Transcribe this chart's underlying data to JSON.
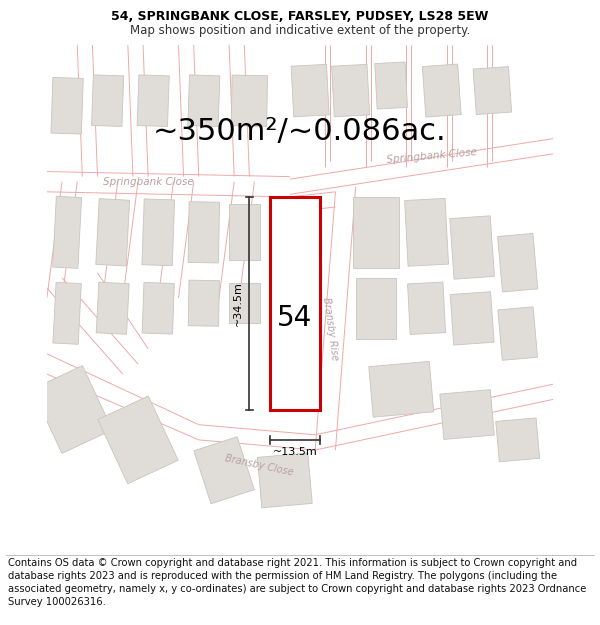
{
  "title_line1": "54, SPRINGBANK CLOSE, FARSLEY, PUDSEY, LS28 5EW",
  "title_line2": "Map shows position and indicative extent of the property.",
  "area_text": "~350m²/~0.086ac.",
  "label_54": "54",
  "dim_height": "~34.5m",
  "dim_width": "~13.5m",
  "road_springbank_left": "Springbank Close",
  "road_springbank_right": "Springbank Close",
  "road_bransby_rise": "Bransby Rise",
  "road_bransby_close": "Bransby Close",
  "map_bg": "#f8f8f6",
  "building_fill": "#e0ddd8",
  "building_edge": "#c8c5be",
  "highlight_fill": "#ffffff",
  "highlight_edge": "#cc0000",
  "road_line_color": "#f0a8a8",
  "road_text_color": "#b8a0a0",
  "dim_line_color": "#333333",
  "footer_text": "Contains OS data © Crown copyright and database right 2021. This information is subject to Crown copyright and database rights 2023 and is reproduced with the permission of HM Land Registry. The polygons (including the associated geometry, namely x, y co-ordinates) are subject to Crown copyright and database rights 2023 Ordnance Survey 100026316.",
  "title_fontsize": 9.0,
  "area_fontsize": 22,
  "footer_fontsize": 7.2,
  "dim_label_fontsize": 8.0,
  "road_label_fontsize": 7.5,
  "num_label_fontsize": 20
}
